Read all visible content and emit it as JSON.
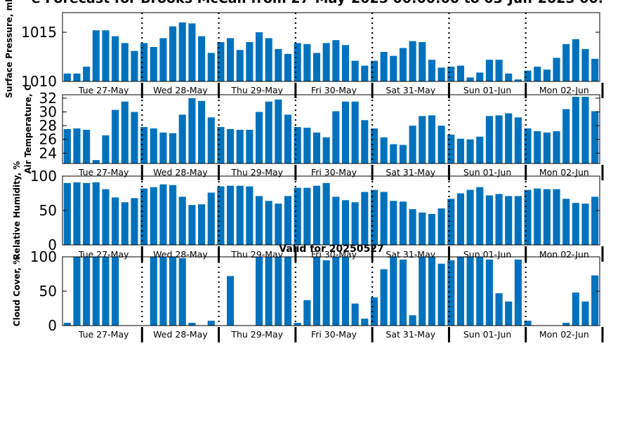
{
  "title": "e Forecast for Brooks McCall from 27-May-2025 00:00:00 to 03-Jun-2025 00:",
  "subtitle": "Valid for 20250527",
  "colors": {
    "bar": "#0072bd",
    "axis": "#000000",
    "divider": "#000000"
  },
  "day_labels": [
    "Tue 27-May",
    "Wed 28-May",
    "Thu 29-May",
    "Fri 30-May",
    "Sat 31-May",
    "Sun 01-Jun",
    "Mon 02-Jun"
  ],
  "chart_data": [
    {
      "type": "bar",
      "ylabel": "Surface Pressure, mb",
      "ylim": [
        1010,
        1017
      ],
      "yticks": [
        "1010",
        "1015"
      ],
      "ytick_values": [
        1010,
        1015
      ],
      "grid": false,
      "values": [
        1010.8,
        1010.8,
        1011.5,
        1015.2,
        1015.2,
        1014.6,
        1013.9,
        1013.1,
        1013.9,
        1013.5,
        1014.4,
        1015.6,
        1016.0,
        1015.9,
        1014.6,
        1012.9,
        1014.0,
        1014.4,
        1013.2,
        1014.0,
        1015.0,
        1014.4,
        1013.3,
        1012.8,
        1013.9,
        1013.8,
        1012.9,
        1013.9,
        1014.2,
        1013.7,
        1012.1,
        1011.6,
        1012.1,
        1013.0,
        1012.6,
        1013.4,
        1014.1,
        1014.0,
        1012.2,
        1011.4,
        1011.5,
        1011.6,
        1010.4,
        1010.9,
        1012.2,
        1012.2,
        1010.8,
        1010.2,
        1011.1,
        1011.5,
        1011.2,
        1012.4,
        1013.8,
        1014.3,
        1013.3,
        1012.3
      ]
    },
    {
      "type": "bar",
      "ylabel": "Air Temperature, C",
      "ylim": [
        22.5,
        32.5
      ],
      "yticks": [
        "24",
        "26",
        "28",
        "30",
        "32"
      ],
      "ytick_values": [
        24,
        26,
        28,
        30,
        32
      ],
      "grid": false,
      "values": [
        27.5,
        27.6,
        27.4,
        23.0,
        26.6,
        30.3,
        31.5,
        30.0,
        27.8,
        27.6,
        27.0,
        26.9,
        29.6,
        32.0,
        31.6,
        29.2,
        27.8,
        27.5,
        27.4,
        27.4,
        30.0,
        31.5,
        31.8,
        29.6,
        27.8,
        27.7,
        27.0,
        26.3,
        30.1,
        31.5,
        31.5,
        28.8,
        27.6,
        26.3,
        25.3,
        25.2,
        28.0,
        29.4,
        29.5,
        28.0,
        26.7,
        26.1,
        26.0,
        26.4,
        29.4,
        29.5,
        29.8,
        29.2,
        27.6,
        27.2,
        27.0,
        27.2,
        30.4,
        32.2,
        32.2,
        30.1
      ]
    },
    {
      "type": "bar",
      "ylabel": "Relative Humidity, %",
      "ylim": [
        0,
        100
      ],
      "yticks": [
        "0",
        "50",
        "100"
      ],
      "ytick_values": [
        0,
        50,
        100
      ],
      "grid": false,
      "values": [
        90,
        91,
        90,
        91,
        81,
        69,
        62,
        68,
        82,
        84,
        88,
        87,
        70,
        58,
        59,
        76,
        85,
        86,
        86,
        85,
        71,
        64,
        60,
        71,
        83,
        83,
        86,
        90,
        70,
        65,
        62,
        77,
        80,
        77,
        64,
        63,
        52,
        47,
        45,
        53,
        67,
        75,
        80,
        84,
        72,
        74,
        71,
        71,
        80,
        82,
        81,
        81,
        67,
        61,
        60,
        70
      ]
    },
    {
      "type": "bar",
      "ylabel": "Cloud Cover, %",
      "ylim": [
        0,
        100
      ],
      "yticks": [
        "0",
        "50",
        "100"
      ],
      "ytick_values": [
        0,
        50,
        100
      ],
      "grid": false,
      "values": [
        4,
        100,
        100,
        100,
        100,
        100,
        0,
        0,
        0,
        100,
        100,
        100,
        98,
        4,
        0,
        7,
        0,
        72,
        0,
        0,
        100,
        100,
        100,
        100,
        4,
        37,
        100,
        95,
        100,
        100,
        32,
        10,
        41,
        82,
        100,
        96,
        15,
        100,
        100,
        90,
        95,
        100,
        100,
        100,
        96,
        47,
        35,
        96,
        7,
        0,
        0,
        0,
        4,
        48,
        35,
        73
      ]
    }
  ]
}
